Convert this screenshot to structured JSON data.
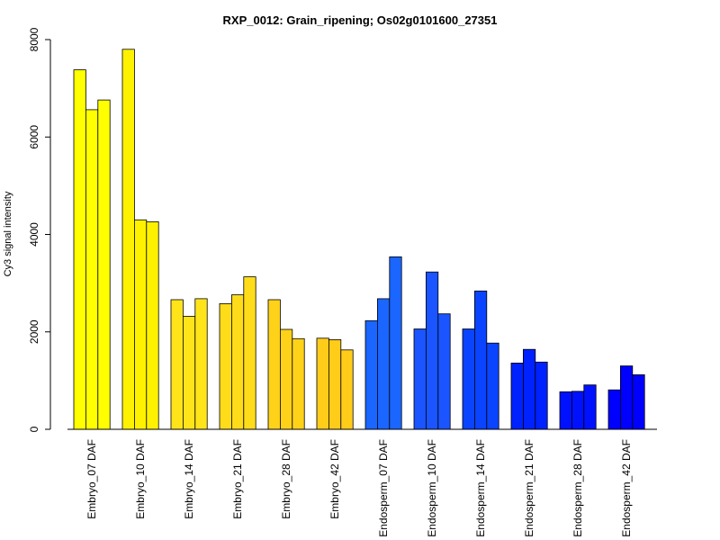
{
  "chart_data": {
    "type": "bar",
    "title": "RXP_0012: Grain_ripening; Os02g0101600_27351",
    "xlabel": "",
    "ylabel": "Cy3 signal intensity",
    "ylim": [
      0,
      8000
    ],
    "yticks": [
      0,
      2000,
      4000,
      6000,
      8000
    ],
    "grid": false,
    "legend": "none",
    "categories": [
      "Embryo_07 DAF",
      "Embryo_10 DAF",
      "Embryo_14 DAF",
      "Embryo_21 DAF",
      "Embryo_28 DAF",
      "Embryo_42 DAF",
      "Endosperm_07 DAF",
      "Endosperm_10 DAF",
      "Endosperm_14 DAF",
      "Endosperm_21 DAF",
      "Endosperm_28 DAF",
      "Endosperm_42 DAF"
    ],
    "group_colors": [
      "#ffff00",
      "#fff200",
      "#ffe41a",
      "#ffdc1a",
      "#ffd21a",
      "#ffcc1a",
      "#1a66ff",
      "#1a55ff",
      "#0a44ff",
      "#0022ff",
      "#0011ff",
      "#0000ff"
    ],
    "replicate_values": [
      [
        7380,
        6560,
        6760
      ],
      [
        7800,
        4300,
        4260
      ],
      [
        2660,
        2320,
        2680
      ],
      [
        2580,
        2760,
        3130
      ],
      [
        2660,
        2050,
        1860
      ],
      [
        1870,
        1840,
        1630
      ],
      [
        2230,
        2680,
        3540
      ],
      [
        2060,
        3230,
        2370
      ],
      [
        2060,
        2840,
        1770
      ],
      [
        1360,
        1640,
        1380
      ],
      [
        770,
        780,
        910
      ],
      [
        810,
        1300,
        1120
      ]
    ]
  }
}
